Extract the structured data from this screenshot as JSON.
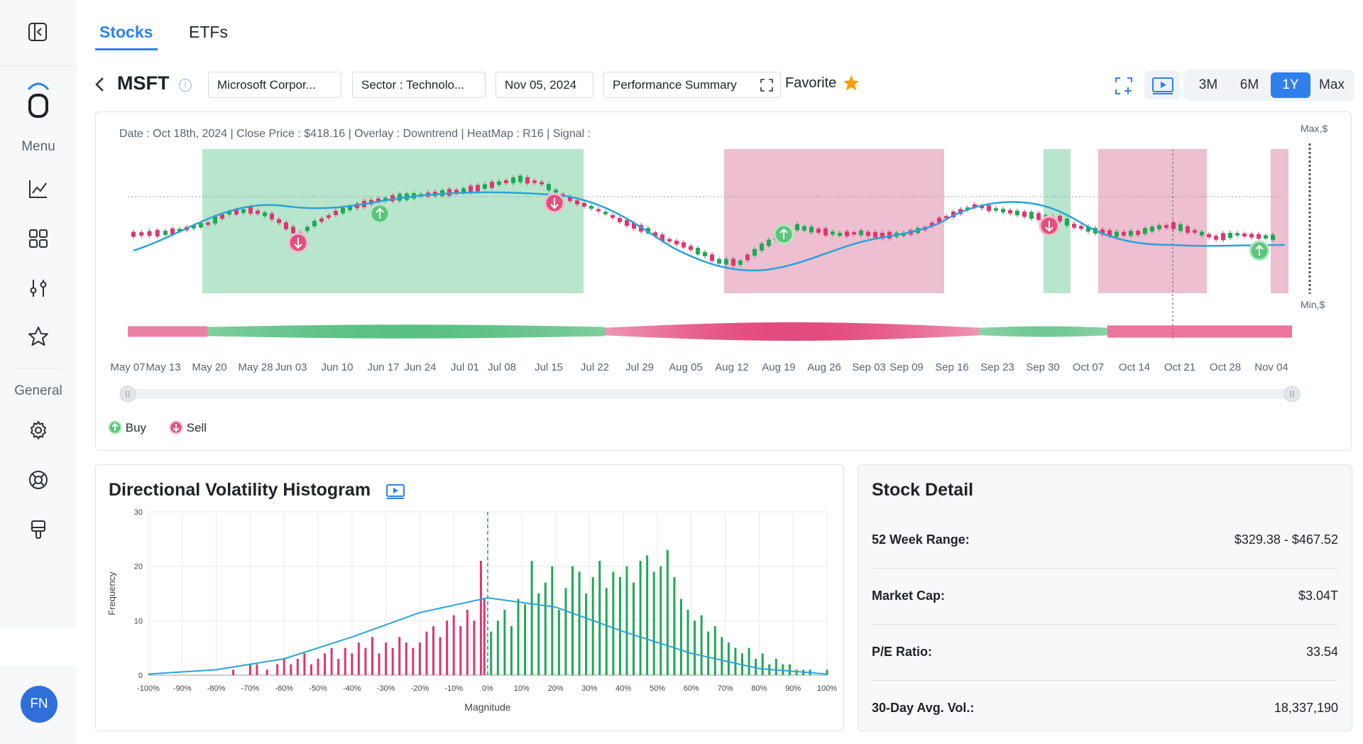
{
  "nav": {
    "menu_label": "Menu",
    "general_label": "General",
    "user_initials": "FN"
  },
  "tabs": [
    {
      "label": "Stocks",
      "active": true
    },
    {
      "label": "ETFs",
      "active": false
    }
  ],
  "header": {
    "ticker": "MSFT",
    "company": "Microsoft Corpor...",
    "sector": "Sector : Technolo...",
    "date": "Nov 05, 2024",
    "summary": "Performance Summary",
    "favorite_label": "Favorite",
    "ranges": [
      {
        "label": "3M",
        "active": false
      },
      {
        "label": "6M",
        "active": false
      },
      {
        "label": "1Y",
        "active": true
      },
      {
        "label": "Max",
        "active": false
      }
    ]
  },
  "main_chart": {
    "info_line": "Date : Oct 18th, 2024 | Close Price : $418.16 | Overlay : Downtrend | HeatMap : R16 | Signal :",
    "max_label": "Max,$",
    "min_label": "Min,$",
    "x_ticks": [
      "May 07",
      "May 13",
      "May 20",
      "May 28",
      "Jun 03",
      "Jun 10",
      "Jun 17",
      "Jun 24",
      "Jul 01",
      "Jul 08",
      "Jul 15",
      "Jul 22",
      "Jul 29",
      "Aug 05",
      "Aug 12",
      "Aug 19",
      "Aug 26",
      "Sep 03",
      "Sep 09",
      "Sep 16",
      "Sep 23",
      "Sep 30",
      "Oct 07",
      "Oct 14",
      "Oct 21",
      "Oct 28",
      "Nov 04"
    ],
    "legend_buy": "Buy",
    "legend_sell": "Sell",
    "colors": {
      "up": "#1fa855",
      "down": "#e0356e",
      "buy_zone": "#b7e6cc",
      "sell_zone": "#edbfd0",
      "trend": "#2ba3d6"
    }
  },
  "histogram": {
    "title": "Directional Volatility Histogram",
    "ylabel": "Frequency",
    "xlabel": "Magnitude",
    "y_ticks": [
      "0",
      "10",
      "20",
      "30"
    ],
    "x_ticks": [
      "-100%",
      "-90%",
      "-80%",
      "-70%",
      "-60%",
      "-50%",
      "-40%",
      "-30%",
      "-20%",
      "-10%",
      "0%",
      "10%",
      "20%",
      "30%",
      "40%",
      "50%",
      "60%",
      "70%",
      "80%",
      "90%",
      "100%"
    ]
  },
  "chart_data": {
    "type": "bar",
    "title": "Directional Volatility Histogram",
    "xlabel": "Magnitude",
    "ylabel": "Frequency",
    "xlim": [
      -100,
      100
    ],
    "ylim": [
      0,
      30
    ],
    "series": [
      {
        "name": "",
        "color": "#e0356e",
        "x": [
          -75,
          -70,
          -68,
          -65,
          -62,
          -60,
          -58,
          -56,
          -54,
          -52,
          -50,
          -48,
          -46,
          -44,
          -42,
          -40,
          -38,
          -36,
          -34,
          -32,
          -30,
          -28,
          -26,
          -24,
          -22,
          -20,
          -18,
          -16,
          -14,
          -12,
          -10,
          -8,
          -6,
          -4,
          -2,
          -1
        ],
        "values": [
          1,
          2,
          2,
          1,
          2,
          3,
          2,
          3,
          4,
          2,
          3,
          4,
          5,
          3,
          5,
          4,
          6,
          5,
          7,
          4,
          6,
          5,
          7,
          6,
          5,
          6,
          8,
          9,
          7,
          10,
          11,
          9,
          12,
          10,
          21,
          14
        ]
      },
      {
        "name": "",
        "color": "#1fa855",
        "x": [
          1,
          3,
          5,
          7,
          9,
          11,
          13,
          15,
          17,
          19,
          21,
          23,
          25,
          27,
          29,
          31,
          33,
          35,
          37,
          39,
          41,
          43,
          45,
          47,
          49,
          51,
          53,
          55,
          57,
          59,
          61,
          63,
          65,
          67,
          69,
          71,
          73,
          75,
          77,
          79,
          81,
          83,
          85,
          87,
          89,
          91,
          93,
          95,
          100
        ],
        "values": [
          8,
          10,
          12,
          9,
          14,
          13,
          21,
          15,
          17,
          20,
          12,
          16,
          20,
          19,
          15,
          18,
          21,
          16,
          19,
          18,
          20,
          17,
          21,
          22,
          19,
          20,
          23,
          18,
          14,
          12,
          10,
          11,
          8,
          9,
          7,
          6,
          5,
          4,
          5,
          3,
          4,
          2,
          3,
          2,
          2,
          1,
          1,
          1,
          1
        ]
      }
    ],
    "curve": {
      "name": "",
      "color": "#2ba3d6",
      "x": [
        -100,
        -80,
        -60,
        -40,
        -20,
        0,
        20,
        40,
        60,
        80,
        100
      ],
      "values": [
        0.2,
        1,
        3,
        7,
        11.5,
        14.2,
        12.5,
        8,
        4,
        1.2,
        0.2
      ]
    }
  },
  "stock_detail": {
    "title": "Stock Detail",
    "rows": [
      {
        "label": "52 Week Range:",
        "value": "$329.38 - $467.52"
      },
      {
        "label": "Market Cap:",
        "value": "$3.04T"
      },
      {
        "label": "P/E Ratio:",
        "value": "33.54"
      },
      {
        "label": "30-Day Avg. Vol.:",
        "value": "18,337,190"
      }
    ]
  }
}
